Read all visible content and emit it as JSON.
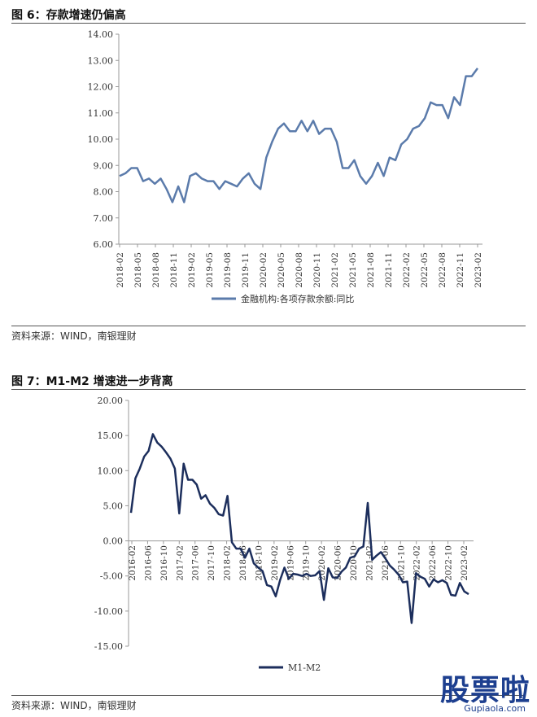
{
  "figure1": {
    "title": "图 6：存款增速仍偏高",
    "source": "资料来源：WIND，南银理财",
    "chart_data": {
      "type": "line",
      "ylim": [
        6,
        14
      ],
      "yticks": [
        "6.00",
        "7.00",
        "8.00",
        "9.00",
        "10.00",
        "11.00",
        "12.00",
        "13.00",
        "14.00"
      ],
      "xticks": [
        "2018-02",
        "2018-05",
        "2018-08",
        "2018-11",
        "2019-02",
        "2019-05",
        "2019-08",
        "2019-11",
        "2020-02",
        "2020-05",
        "2020-08",
        "2020-11",
        "2021-02",
        "2021-05",
        "2021-08",
        "2021-11",
        "2022-02",
        "2022-05",
        "2022-08",
        "2022-11",
        "2023-02"
      ],
      "series": [
        {
          "name": "金融机构:各项存款余额:同比",
          "color": "#5b7bab",
          "values": [
            8.6,
            8.7,
            8.9,
            8.9,
            8.4,
            8.5,
            8.3,
            8.5,
            8.1,
            7.6,
            8.2,
            7.6,
            8.6,
            8.7,
            8.5,
            8.4,
            8.4,
            8.1,
            8.4,
            8.3,
            8.2,
            8.5,
            8.7,
            8.3,
            8.1,
            9.3,
            9.9,
            10.4,
            10.6,
            10.3,
            10.3,
            10.7,
            10.3,
            10.7,
            10.2,
            10.4,
            10.4,
            9.9,
            8.9,
            8.9,
            9.2,
            8.6,
            8.3,
            8.6,
            9.1,
            8.6,
            9.3,
            9.2,
            9.8,
            10.0,
            10.4,
            10.5,
            10.8,
            11.4,
            11.3,
            11.3,
            10.8,
            11.6,
            11.3,
            12.4,
            12.4,
            12.7
          ]
        }
      ]
    }
  },
  "figure2": {
    "title": "图 7：M1-M2 增速进一步背离",
    "source": "资料来源：WIND，南银理财",
    "chart_data": {
      "type": "line",
      "ylim": [
        -15,
        20
      ],
      "yticks": [
        "-15.00",
        "-10.00",
        "-5.00",
        "0.00",
        "5.00",
        "10.00",
        "15.00",
        "20.00"
      ],
      "xticks": [
        "2016-02",
        "2016-06",
        "2016-10",
        "2017-02",
        "2017-06",
        "2017-10",
        "2018-02",
        "2018-06",
        "2018-10",
        "2019-02",
        "2019-06",
        "2019-10",
        "2020-02",
        "2020-06",
        "2020-10",
        "2021-02",
        "2021-06",
        "2021-10",
        "2022-02",
        "2022-06",
        "2022-10",
        "2023-02"
      ],
      "series": [
        {
          "name": "M1-M2",
          "color": "#1c2e5c",
          "values": [
            4.0,
            8.9,
            10.3,
            12.0,
            12.8,
            15.2,
            14.0,
            13.4,
            12.6,
            11.7,
            10.3,
            3.9,
            11.0,
            8.7,
            8.7,
            8.0,
            6.0,
            6.5,
            5.3,
            4.7,
            3.8,
            3.6,
            6.4,
            -0.2,
            -1.1,
            -1.1,
            -2.4,
            -1.1,
            -3.2,
            -3.8,
            -4.3,
            -6.3,
            -6.5,
            -7.9,
            -5.6,
            -3.8,
            -5.4,
            -4.7,
            -4.8,
            -5.0,
            -4.7,
            -5.0,
            -4.9,
            -4.3,
            -8.4,
            -3.9,
            -5.2,
            -5.3,
            -4.4,
            -3.8,
            -2.4,
            -2.2,
            -1.1,
            -0.8,
            5.4,
            -2.7,
            -2.1,
            -1.6,
            -2.5,
            -3.5,
            -4.1,
            -4.8,
            -5.9,
            -5.8,
            -11.7,
            -4.6,
            -5.1,
            -5.4,
            -6.5,
            -5.5,
            -5.9,
            -5.6,
            -6.0,
            -7.7,
            -7.8,
            -6.0,
            -7.2,
            -7.6
          ]
        }
      ]
    }
  },
  "watermark": {
    "main": "股票啦",
    "sub": "Gupiaola.com"
  }
}
